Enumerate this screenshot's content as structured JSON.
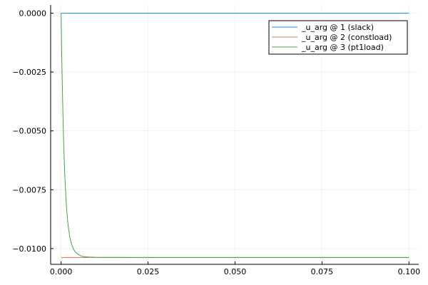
{
  "chart_data": {
    "type": "line",
    "xlim": [
      -0.003,
      0.1028
    ],
    "ylim": [
      -0.01067,
      0.00035
    ],
    "x_ticks": [
      0.0,
      0.025,
      0.05,
      0.075,
      0.1
    ],
    "x_tick_labels": [
      "0.000",
      "0.025",
      "0.050",
      "0.075",
      "0.100"
    ],
    "y_ticks": [
      0.0,
      -0.0025,
      -0.005,
      -0.0075,
      -0.01
    ],
    "y_tick_labels": [
      "0.0000",
      "−0.0025",
      "−0.0050",
      "−0.0075",
      "−0.0100"
    ],
    "grid": true,
    "legend_position": "top-right",
    "series": [
      {
        "name": "_u_arg @ 1 (slack)",
        "color": "#009AFA",
        "x": [
          0.0,
          0.1
        ],
        "y": [
          0.0,
          0.0
        ]
      },
      {
        "name": "_u_arg @ 2 (constload)",
        "color": "#E36F47",
        "x": [
          0.0,
          0.1
        ],
        "y": [
          -0.01038,
          -0.01038
        ]
      },
      {
        "name": "_u_arg @ 3 (pt1load)",
        "color": "#3EA44E",
        "x": [
          0.0,
          0.0002,
          0.0004,
          0.0006,
          0.0008,
          0.001,
          0.0012,
          0.0015,
          0.0018,
          0.002,
          0.0025,
          0.003,
          0.0035,
          0.004,
          0.005,
          0.006,
          0.007,
          0.008,
          0.01,
          0.02,
          0.05,
          0.1
        ],
        "y": [
          0.0,
          -0.0019,
          -0.0034,
          -0.0047,
          -0.0058,
          -0.0066,
          -0.0073,
          -0.0081,
          -0.0087,
          -0.00899,
          -0.00951,
          -0.0098,
          -0.01,
          -0.01013,
          -0.01026,
          -0.01033,
          -0.01035,
          -0.01036,
          -0.01037,
          -0.01038,
          -0.01038,
          -0.01038
        ]
      }
    ]
  }
}
